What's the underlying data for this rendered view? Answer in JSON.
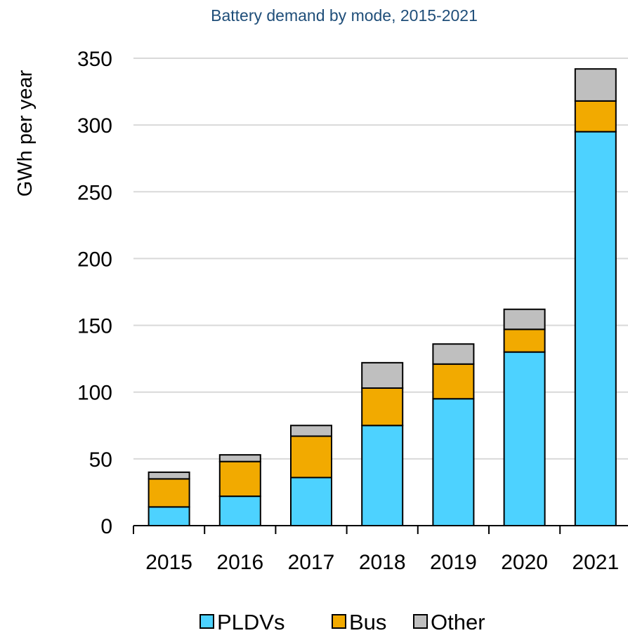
{
  "chart_data": {
    "type": "bar",
    "stacked": true,
    "title": "Battery demand by mode, 2015-2021",
    "xlabel": "",
    "ylabel": "GWh per year",
    "categories": [
      "2015",
      "2016",
      "2017",
      "2018",
      "2019",
      "2020",
      "2021"
    ],
    "series": [
      {
        "name": "PLDVs",
        "color": "#4dd2ff",
        "values": [
          14,
          22,
          36,
          75,
          95,
          130,
          295
        ]
      },
      {
        "name": "Bus",
        "color": "#f2aa00",
        "values": [
          21,
          26,
          31,
          28,
          26,
          17,
          23
        ]
      },
      {
        "name": "Other",
        "color": "#bfbfbf",
        "values": [
          5,
          5,
          8,
          19,
          15,
          15,
          24
        ]
      }
    ],
    "ylim": [
      0,
      350
    ],
    "yticks": [
      0,
      50,
      100,
      150,
      200,
      250,
      300,
      350
    ],
    "grid": true,
    "legend_position": "bottom",
    "title_color": "#1f4e79"
  }
}
